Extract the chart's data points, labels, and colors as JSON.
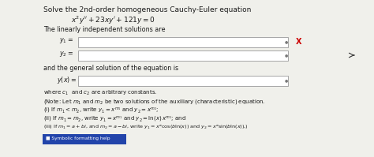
{
  "bg_color": "#f0f0eb",
  "title_line1": "Solve the 2nd-order homogeneous Cauchy-Euler equation",
  "equation": "$x^2y'' + 23xy' + 121y = 0$",
  "line_independent": "The linearly independent solutions are",
  "y1_label": "$y_1 =$",
  "y2_label": "$y_2 =$",
  "general_sol_label": "and the general solution of the equation is",
  "yx_label": "$y(x) =$",
  "note_line1": "where $c_1$  and $c_2$ are arbitrary constants.",
  "note_line2": "(Note: Let $m_1$ and $m_2$ be two solutions of the auxiliary (characteristic) equation.",
  "note_line3": "(i) If $m_1 < m_2$, write $y_1 = x^{m_1}$ and $y_2 = x^{m_2}$;",
  "note_line4": "(ii) If $m_1 = m_2$, write $y_1 = x^{m_1}$ and $y_2 = \\ln(x)\\,x^{m_1}$; and",
  "note_line5": "(iii) If $m_1 = a+bi$, and $m_2 = a - bi$, write $y_1 = x^a\\cos(b\\ln(x))$ and $y_2 = x^a\\sin(b\\ln(x))$,)",
  "symbolic_label": " Symbolic formatting help",
  "text_color": "#1a1a1a",
  "box_color": "#ffffff",
  "box_edge_color": "#999999",
  "x_mark_color": "#cc0000",
  "symbolic_bg": "#2244aa",
  "symbolic_text": "#ffffff",
  "arrow_color": "#333333"
}
